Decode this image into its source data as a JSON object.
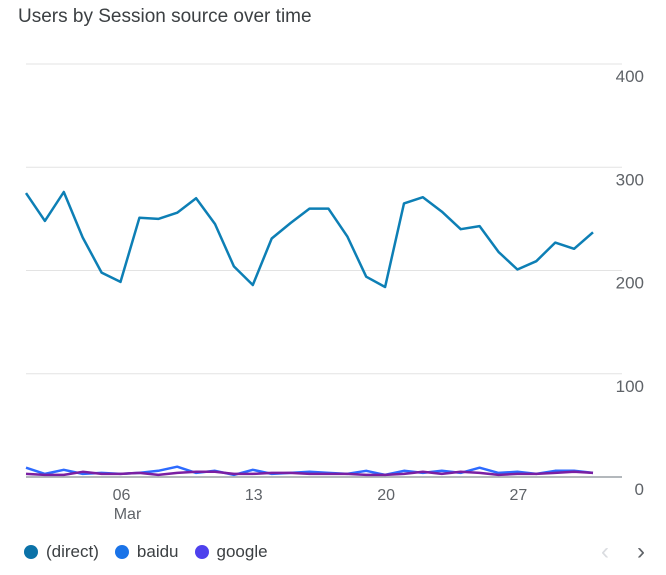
{
  "chart_data": {
    "type": "line",
    "title": "Users by Session source over time",
    "xlabel": "",
    "ylabel": "",
    "ylim": [
      0,
      400
    ],
    "y_ticks": [
      "400",
      "300",
      "200",
      "100",
      "0"
    ],
    "x_ticks": [
      {
        "index": 5,
        "label": "06",
        "sublabel": "Mar"
      },
      {
        "index": 12,
        "label": "13",
        "sublabel": ""
      },
      {
        "index": 19,
        "label": "20",
        "sublabel": ""
      },
      {
        "index": 26,
        "label": "27",
        "sublabel": ""
      }
    ],
    "grid": true,
    "legend_position": "bottom-left",
    "series": [
      {
        "name": "(direct)",
        "color": "#1a73e8",
        "values": [
          275,
          248,
          276,
          232,
          198,
          189,
          251,
          250,
          256,
          270,
          245,
          204,
          186,
          231,
          246,
          260,
          260,
          233,
          194,
          184,
          265,
          271,
          257,
          240,
          243,
          218,
          201,
          209,
          227,
          221,
          237
        ]
      },
      {
        "name": "baidu",
        "color": "#1a73e8",
        "values": [
          9,
          3,
          7,
          3,
          4,
          3,
          4,
          6,
          10,
          4,
          6,
          2,
          7,
          3,
          4,
          5,
          4,
          3,
          6,
          2,
          6,
          4,
          6,
          4,
          9,
          4,
          5,
          3,
          6,
          6,
          4
        ]
      },
      {
        "name": "google",
        "color": "#4e41ed",
        "values": [
          3,
          2,
          2,
          5,
          3,
          3,
          4,
          2,
          4,
          5,
          5,
          3,
          3,
          4,
          4,
          3,
          3,
          3,
          2,
          2,
          3,
          5,
          3,
          5,
          4,
          2,
          3,
          3,
          4,
          5,
          4
        ]
      }
    ],
    "legend_colors": [
      "#0b72a8",
      "#1a73e8",
      "#4e41ed"
    ],
    "line_colors": [
      "#0d7fb5",
      "#2d6bff",
      "#7a1fa2"
    ]
  },
  "pager": {
    "prev": "‹",
    "next": "›"
  }
}
